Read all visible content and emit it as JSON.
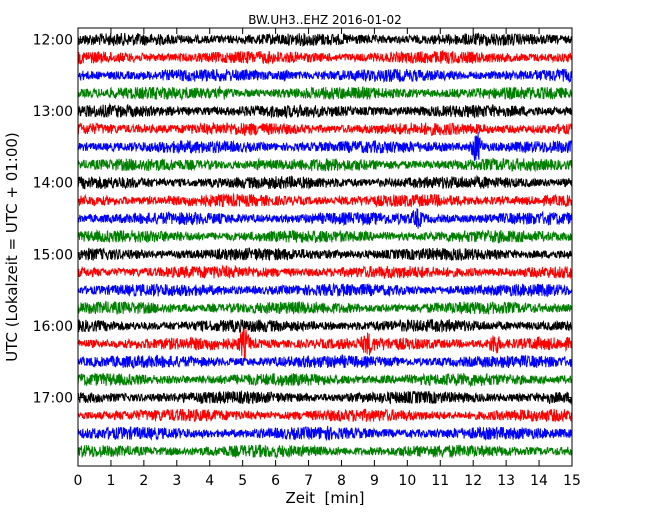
{
  "chart_data": {
    "type": "line",
    "title": "BW.UH3..EHZ 2016-01-02",
    "xlabel": "Zeit  [min]",
    "ylabel": "UTC (Lokalzeit = UTC + 01:00)",
    "xlim": [
      0,
      15
    ],
    "x_ticks": [
      "0",
      "1",
      "2",
      "3",
      "4",
      "5",
      "6",
      "7",
      "8",
      "9",
      "10",
      "11",
      "12",
      "13",
      "14",
      "15"
    ],
    "y_tick_labels": [
      "12:00",
      "13:00",
      "14:00",
      "15:00",
      "16:00",
      "17:00"
    ],
    "trace_interval_min": 15,
    "first_trace_start": "12:00",
    "last_trace_start": "17:45",
    "color_cycle": [
      "#000000",
      "#ff0000",
      "#0000ff",
      "#008000"
    ],
    "events": [
      {
        "trace_start": "12:30",
        "x_min": 6.3,
        "amplitude": 1.5
      },
      {
        "trace_start": "12:45",
        "x_min": 4.4,
        "amplitude": 1.6
      },
      {
        "trace_start": "13:30",
        "x_min": 12.1,
        "amplitude": 3.5
      },
      {
        "trace_start": "13:45",
        "x_min": 5.5,
        "amplitude": 1.3
      },
      {
        "trace_start": "14:30",
        "x_min": 10.3,
        "amplitude": 2.2
      },
      {
        "trace_start": "16:15",
        "x_min": 5.05,
        "amplitude": 3.2
      },
      {
        "trace_start": "16:15",
        "x_min": 8.8,
        "amplitude": 2.2
      },
      {
        "trace_start": "16:15",
        "x_min": 12.65,
        "amplitude": 2.6
      },
      {
        "trace_start": "16:15",
        "x_min": 13.9,
        "amplitude": 1.3
      },
      {
        "trace_start": "17:00",
        "x_min": 14.3,
        "amplitude": 1.3
      },
      {
        "trace_start": "17:30",
        "x_min": 7.5,
        "amplitude": 1.3
      }
    ]
  }
}
